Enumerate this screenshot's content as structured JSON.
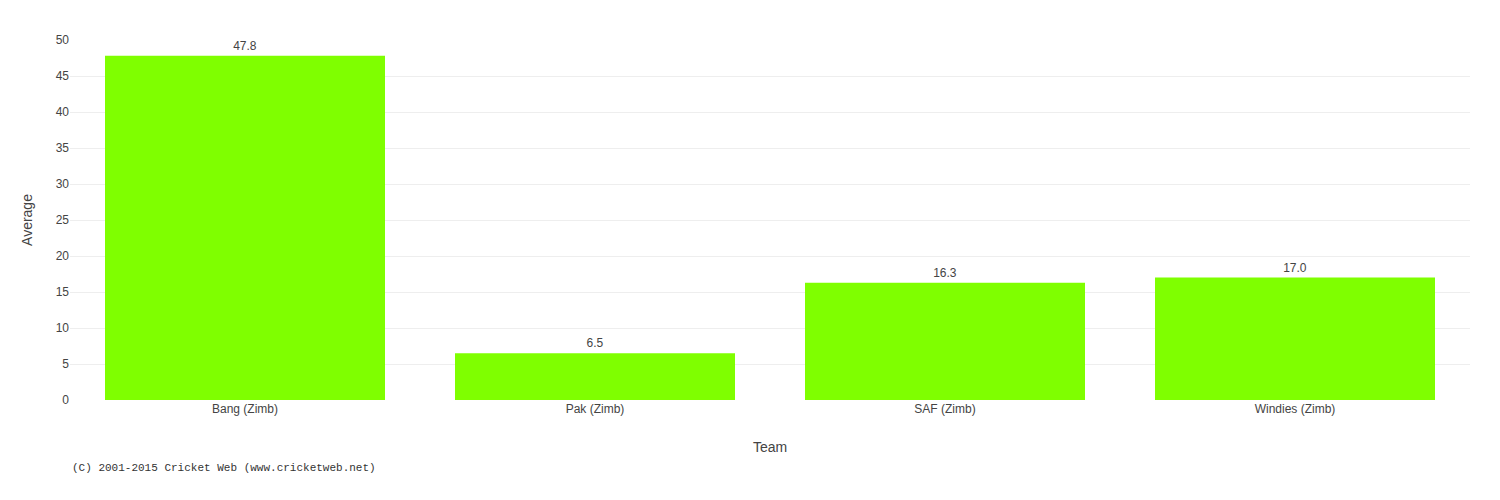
{
  "chart_data": {
    "type": "bar",
    "categories": [
      "Bang (Zimb)",
      "Pak (Zimb)",
      "SAF (Zimb)",
      "Windies (Zimb)"
    ],
    "values": [
      47.8,
      6.5,
      16.3,
      17.0
    ],
    "value_labels": [
      "47.8",
      "6.5",
      "16.3",
      "17.0"
    ],
    "data_labels": true,
    "color": "#7fff00",
    "xlabel": "Team",
    "ylabel": "Average",
    "ylim": [
      0,
      50
    ],
    "yticks": [
      0,
      5,
      10,
      15,
      20,
      25,
      30,
      35,
      40,
      45,
      50
    ],
    "grid": true,
    "annotations": [
      "(C) 2001-2015 Cricket Web (www.cricketweb.net)"
    ]
  }
}
